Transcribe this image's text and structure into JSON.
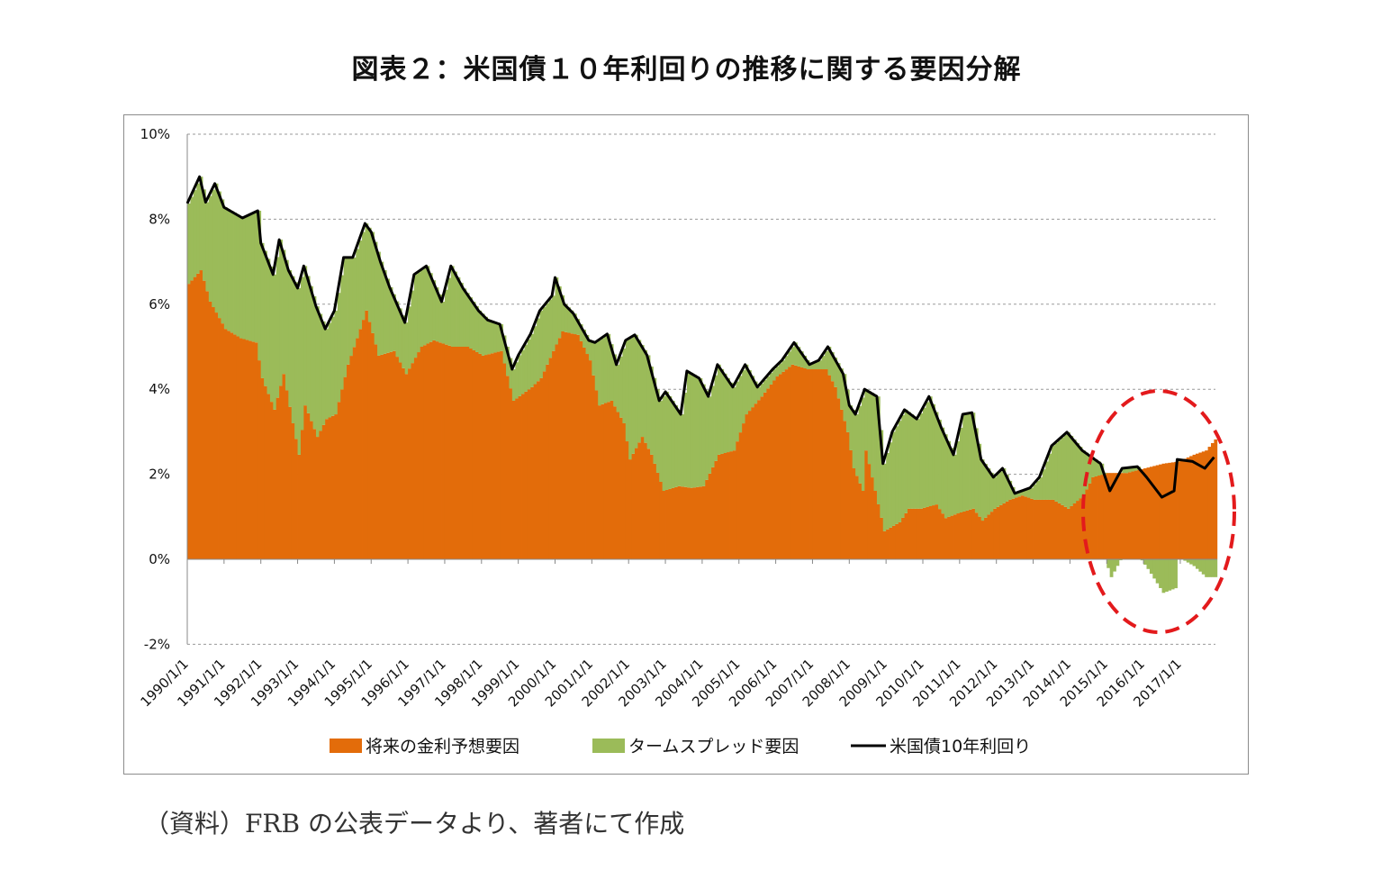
{
  "chart_data": {
    "type": "bar+line",
    "title": "図表２：米国債１０年利回りの推移に関する要因分解",
    "xlabel": "",
    "ylabel": "",
    "ylim": [
      -2,
      10
    ],
    "yticks": [
      "10%",
      "8%",
      "6%",
      "4%",
      "2%",
      "0%",
      "-2%"
    ],
    "ytick_values": [
      10,
      8,
      6,
      4,
      2,
      0,
      -2
    ],
    "xticks": [
      "1990/1/1",
      "1991/1/1",
      "1992/1/1",
      "1993/1/1",
      "1994/1/1",
      "1995/1/1",
      "1996/1/1",
      "1997/1/1",
      "1998/1/1",
      "1999/1/1",
      "2000/1/1",
      "2001/1/1",
      "2002/1/1",
      "2003/1/1",
      "2004/1/1",
      "2005/1/1",
      "2006/1/1",
      "2007/1/1",
      "2008/1/1",
      "2009/1/1",
      "2010/1/1",
      "2011/1/1",
      "2012/1/1",
      "2013/1/1",
      "2014/1/1",
      "2015/1/1",
      "2016/1/1",
      "2017/1/1"
    ],
    "xrange": [
      "1990/01",
      "2017/12"
    ],
    "grid": "horizontal dashed",
    "legend_position": "bottom",
    "stacked": true,
    "series": [
      {
        "name": "将来の金利予想要因",
        "kind": "bar",
        "color": "#e36c0a",
        "points": [
          [
            "1990/01",
            6.48
          ],
          [
            "1990/05",
            6.8
          ],
          [
            "1990/08",
            6.06
          ],
          [
            "1991/01",
            5.42
          ],
          [
            "1991/06",
            5.2
          ],
          [
            "1991/11",
            5.1
          ],
          [
            "1992/01",
            4.26
          ],
          [
            "1992/05",
            3.52
          ],
          [
            "1992/08",
            4.36
          ],
          [
            "1992/11",
            3.2
          ],
          [
            "1993/01",
            2.46
          ],
          [
            "1993/03",
            3.62
          ],
          [
            "1993/07",
            2.88
          ],
          [
            "1993/10",
            3.3
          ],
          [
            "1994/01",
            3.41
          ],
          [
            "1994/05",
            4.58
          ],
          [
            "1994/08",
            5.2
          ],
          [
            "1994/11",
            5.85
          ],
          [
            "1995/03",
            4.79
          ],
          [
            "1995/08",
            4.9
          ],
          [
            "1995/12",
            4.36
          ],
          [
            "1996/05",
            5.0
          ],
          [
            "1996/09",
            5.15
          ],
          [
            "1997/03",
            5.0
          ],
          [
            "1997/08",
            5.0
          ],
          [
            "1998/01",
            4.79
          ],
          [
            "1998/07",
            4.9
          ],
          [
            "1998/11",
            3.73
          ],
          [
            "1999/05",
            4.05
          ],
          [
            "1999/08",
            4.26
          ],
          [
            "1999/12",
            4.9
          ],
          [
            "2000/03",
            5.36
          ],
          [
            "2000/08",
            5.28
          ],
          [
            "2000/12",
            4.68
          ],
          [
            "2001/03",
            3.62
          ],
          [
            "2001/07",
            3.73
          ],
          [
            "2001/11",
            3.2
          ],
          [
            "2002/01",
            2.35
          ],
          [
            "2002/05",
            2.88
          ],
          [
            "2002/08",
            2.46
          ],
          [
            "2002/12",
            1.61
          ],
          [
            "2003/05",
            1.72
          ],
          [
            "2003/09",
            1.68
          ],
          [
            "2004/01",
            1.72
          ],
          [
            "2004/06",
            2.46
          ],
          [
            "2004/11",
            2.56
          ],
          [
            "2005/03",
            3.41
          ],
          [
            "2005/08",
            3.83
          ],
          [
            "2006/01",
            4.3
          ],
          [
            "2006/06",
            4.58
          ],
          [
            "2006/11",
            4.47
          ],
          [
            "2007/05",
            4.47
          ],
          [
            "2007/08",
            4.05
          ],
          [
            "2007/12",
            2.99
          ],
          [
            "2008/02",
            2.14
          ],
          [
            "2008/05",
            1.61
          ],
          [
            "2008/06",
            2.56
          ],
          [
            "2008/09",
            1.61
          ],
          [
            "2008/12",
            0.66
          ],
          [
            "2009/05",
            0.87
          ],
          [
            "2009/08",
            1.19
          ],
          [
            "2009/12",
            1.19
          ],
          [
            "2010/05",
            1.29
          ],
          [
            "2010/08",
            0.97
          ],
          [
            "2010/12",
            1.08
          ],
          [
            "2011/05",
            1.19
          ],
          [
            "2011/08",
            0.91
          ],
          [
            "2011/12",
            1.19
          ],
          [
            "2012/05",
            1.4
          ],
          [
            "2012/09",
            1.5
          ],
          [
            "2013/01",
            1.4
          ],
          [
            "2013/07",
            1.4
          ],
          [
            "2013/12",
            1.19
          ],
          [
            "2014/05",
            1.5
          ],
          [
            "2014/08",
            1.93
          ],
          [
            "2015/01",
            2.03
          ],
          [
            "2015/07",
            2.03
          ],
          [
            "2016/01",
            2.14
          ],
          [
            "2016/07",
            2.25
          ],
          [
            "2016/12",
            2.3
          ],
          [
            "2017/05",
            2.46
          ],
          [
            "2017/09",
            2.56
          ],
          [
            "2017/12",
            2.82
          ]
        ]
      },
      {
        "name": "タームスプレッド要因",
        "kind": "bar",
        "color": "#9bbb59"
      },
      {
        "name": "米国債10年利回り",
        "kind": "line",
        "color": "#000000",
        "points": [
          [
            "1990/01",
            8.37
          ],
          [
            "1990/05",
            9.0
          ],
          [
            "1990/07",
            8.4
          ],
          [
            "1990/10",
            8.84
          ],
          [
            "1991/01",
            8.28
          ],
          [
            "1991/07",
            8.03
          ],
          [
            "1991/12",
            8.2
          ],
          [
            "1992/01",
            7.44
          ],
          [
            "1992/05",
            6.7
          ],
          [
            "1992/07",
            7.52
          ],
          [
            "1992/10",
            6.8
          ],
          [
            "1993/01",
            6.38
          ],
          [
            "1993/03",
            6.9
          ],
          [
            "1993/07",
            5.95
          ],
          [
            "1993/10",
            5.42
          ],
          [
            "1994/01",
            5.85
          ],
          [
            "1994/04",
            7.1
          ],
          [
            "1994/07",
            7.1
          ],
          [
            "1994/11",
            7.9
          ],
          [
            "1995/01",
            7.7
          ],
          [
            "1995/04",
            7.0
          ],
          [
            "1995/07",
            6.4
          ],
          [
            "1995/12",
            5.57
          ],
          [
            "1996/03",
            6.7
          ],
          [
            "1996/07",
            6.9
          ],
          [
            "1996/12",
            6.06
          ],
          [
            "1997/03",
            6.9
          ],
          [
            "1997/07",
            6.37
          ],
          [
            "1997/12",
            5.85
          ],
          [
            "1998/03",
            5.63
          ],
          [
            "1998/07",
            5.53
          ],
          [
            "1998/11",
            4.47
          ],
          [
            "1999/01",
            4.8
          ],
          [
            "1999/05",
            5.3
          ],
          [
            "1999/08",
            5.85
          ],
          [
            "1999/12",
            6.2
          ],
          [
            "2000/01",
            6.63
          ],
          [
            "2000/04",
            6.0
          ],
          [
            "2000/07",
            5.78
          ],
          [
            "2000/12",
            5.15
          ],
          [
            "2001/02",
            5.1
          ],
          [
            "2001/06",
            5.3
          ],
          [
            "2001/09",
            4.58
          ],
          [
            "2001/12",
            5.15
          ],
          [
            "2002/03",
            5.28
          ],
          [
            "2002/07",
            4.8
          ],
          [
            "2002/11",
            3.73
          ],
          [
            "2003/01",
            3.94
          ],
          [
            "2003/06",
            3.41
          ],
          [
            "2003/08",
            4.43
          ],
          [
            "2003/12",
            4.26
          ],
          [
            "2004/03",
            3.83
          ],
          [
            "2004/06",
            4.58
          ],
          [
            "2004/11",
            4.05
          ],
          [
            "2005/03",
            4.58
          ],
          [
            "2005/07",
            4.05
          ],
          [
            "2005/12",
            4.47
          ],
          [
            "2006/03",
            4.68
          ],
          [
            "2006/07",
            5.1
          ],
          [
            "2006/12",
            4.58
          ],
          [
            "2007/03",
            4.68
          ],
          [
            "2007/06",
            5.0
          ],
          [
            "2007/11",
            4.36
          ],
          [
            "2008/01",
            3.62
          ],
          [
            "2008/03",
            3.41
          ],
          [
            "2008/06",
            4.0
          ],
          [
            "2008/10",
            3.83
          ],
          [
            "2008/12",
            2.25
          ],
          [
            "2009/03",
            3.0
          ],
          [
            "2009/07",
            3.52
          ],
          [
            "2009/11",
            3.3
          ],
          [
            "2010/03",
            3.83
          ],
          [
            "2010/07",
            3.1
          ],
          [
            "2010/11",
            2.46
          ],
          [
            "2011/02",
            3.41
          ],
          [
            "2011/05",
            3.45
          ],
          [
            "2011/08",
            2.35
          ],
          [
            "2011/12",
            1.93
          ],
          [
            "2012/03",
            2.14
          ],
          [
            "2012/07",
            1.55
          ],
          [
            "2012/12",
            1.68
          ],
          [
            "2013/03",
            1.93
          ],
          [
            "2013/07",
            2.67
          ],
          [
            "2013/12",
            2.99
          ],
          [
            "2014/05",
            2.56
          ],
          [
            "2014/11",
            2.25
          ],
          [
            "2015/02",
            1.61
          ],
          [
            "2015/06",
            2.14
          ],
          [
            "2015/11",
            2.18
          ],
          [
            "2016/02",
            1.93
          ],
          [
            "2016/07",
            1.46
          ],
          [
            "2016/11",
            1.61
          ],
          [
            "2016/12",
            2.35
          ],
          [
            "2017/05",
            2.3
          ],
          [
            "2017/09",
            2.14
          ],
          [
            "2017/12",
            2.4
          ]
        ]
      }
    ],
    "annotation": {
      "shape": "dashed ellipse",
      "color": "#e31a1c",
      "period": [
        "2014/06",
        "2017/12"
      ]
    }
  },
  "source_note": "（資料）FRB の公表データより、著者にて作成"
}
